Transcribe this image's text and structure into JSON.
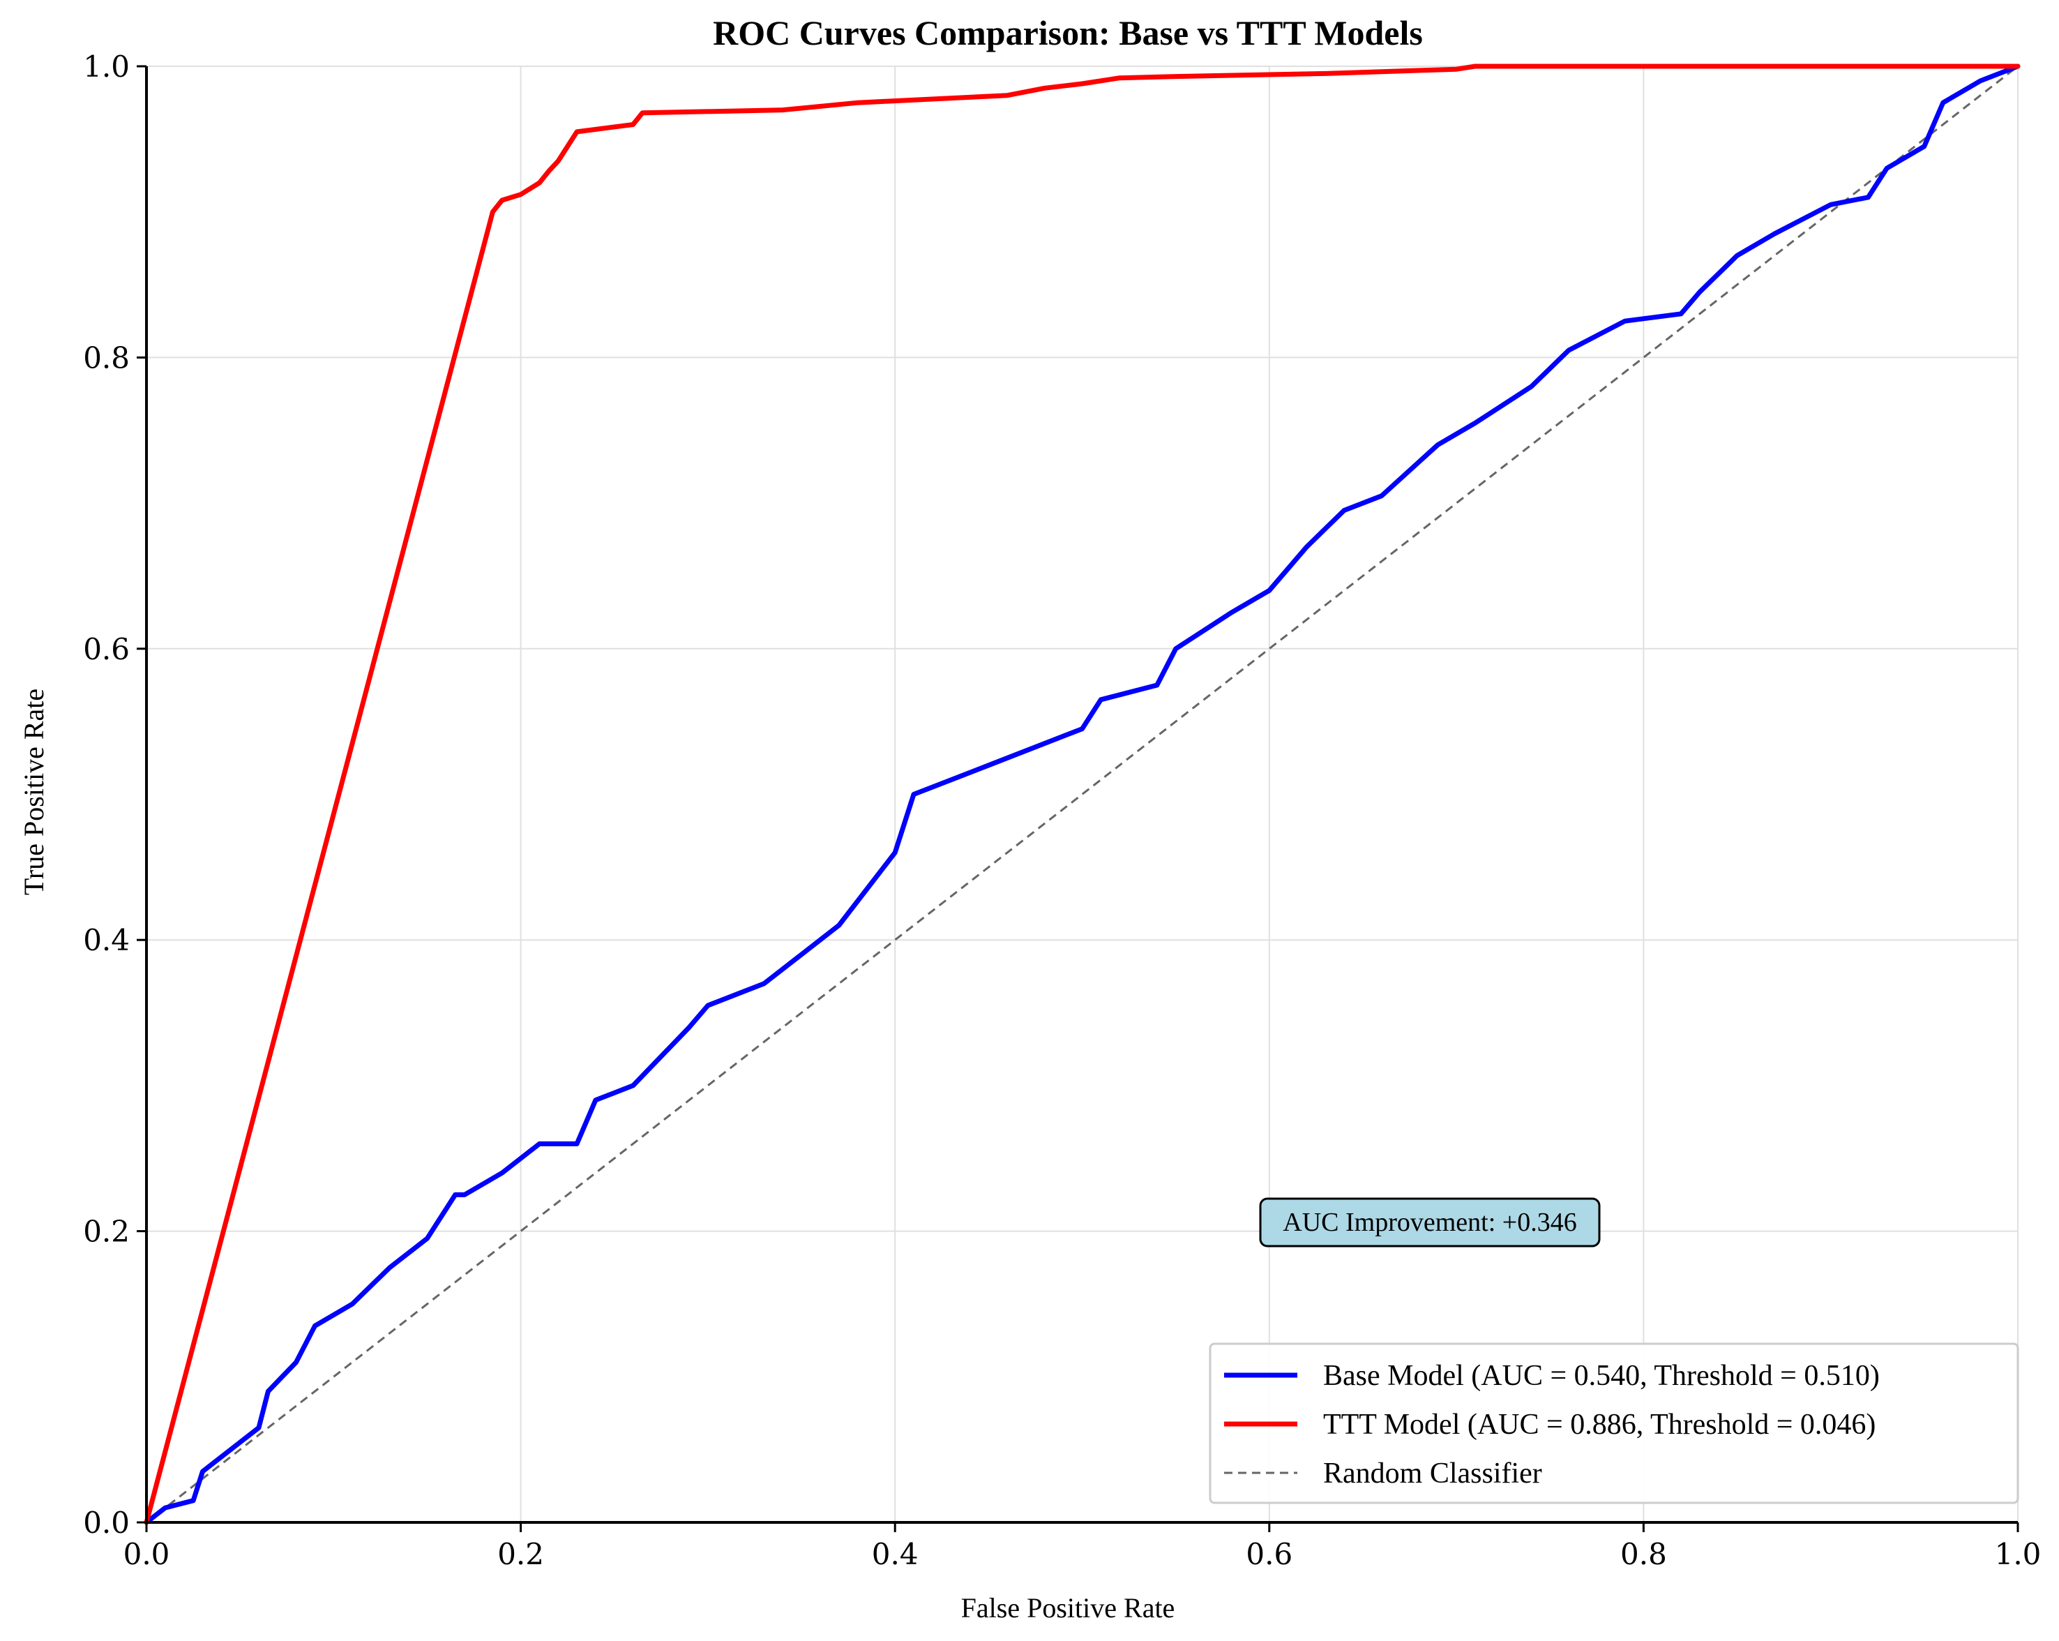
{
  "chart_data": {
    "type": "line",
    "title": "ROC Curves Comparison: Base vs TTT Models",
    "xlabel": "False Positive Rate",
    "ylabel": "True Positive Rate",
    "xlim": [
      0,
      1
    ],
    "ylim": [
      0,
      1
    ],
    "grid": true,
    "legend_position": "bottom-right",
    "x_ticks": [
      "0.0",
      "0.2",
      "0.4",
      "0.6",
      "0.8",
      "1.0"
    ],
    "y_ticks": [
      "0.0",
      "0.2",
      "0.4",
      "0.6",
      "0.8",
      "1.0"
    ],
    "annotation": "AUC Improvement: +0.346",
    "series": [
      {
        "name": "Base Model (AUC = 0.540, Threshold = 0.510)",
        "color": "#0000ff",
        "style": "solid",
        "x": [
          0.0,
          0.01,
          0.025,
          0.03,
          0.04,
          0.05,
          0.06,
          0.065,
          0.08,
          0.09,
          0.11,
          0.13,
          0.15,
          0.165,
          0.17,
          0.19,
          0.21,
          0.23,
          0.24,
          0.26,
          0.29,
          0.3,
          0.33,
          0.37,
          0.4,
          0.41,
          0.45,
          0.5,
          0.51,
          0.54,
          0.55,
          0.58,
          0.6,
          0.62,
          0.64,
          0.66,
          0.69,
          0.71,
          0.74,
          0.76,
          0.79,
          0.82,
          0.83,
          0.85,
          0.87,
          0.9,
          0.92,
          0.93,
          0.95,
          0.96,
          0.98,
          1.0
        ],
        "y": [
          0.0,
          0.01,
          0.015,
          0.035,
          0.045,
          0.055,
          0.065,
          0.09,
          0.11,
          0.135,
          0.15,
          0.175,
          0.195,
          0.225,
          0.225,
          0.24,
          0.26,
          0.26,
          0.29,
          0.3,
          0.34,
          0.355,
          0.37,
          0.41,
          0.46,
          0.5,
          0.52,
          0.545,
          0.565,
          0.575,
          0.6,
          0.625,
          0.64,
          0.67,
          0.695,
          0.705,
          0.74,
          0.755,
          0.78,
          0.805,
          0.825,
          0.83,
          0.845,
          0.87,
          0.885,
          0.905,
          0.91,
          0.93,
          0.945,
          0.975,
          0.99,
          1.0
        ]
      },
      {
        "name": "TTT Model (AUC = 0.886, Threshold = 0.046)",
        "color": "#ff0000",
        "style": "solid",
        "x": [
          0.0,
          0.185,
          0.19,
          0.2,
          0.21,
          0.215,
          0.22,
          0.225,
          0.23,
          0.26,
          0.265,
          0.34,
          0.38,
          0.46,
          0.48,
          0.5,
          0.52,
          0.55,
          0.63,
          0.7,
          0.71,
          1.0
        ],
        "y": [
          0.0,
          0.9,
          0.908,
          0.912,
          0.92,
          0.928,
          0.935,
          0.945,
          0.955,
          0.96,
          0.968,
          0.97,
          0.975,
          0.98,
          0.985,
          0.988,
          0.992,
          0.993,
          0.995,
          0.998,
          1.0,
          1.0
        ]
      },
      {
        "name": "Random Classifier",
        "color": "#666666",
        "style": "dashed",
        "x": [
          0,
          1
        ],
        "y": [
          0,
          1
        ]
      }
    ]
  }
}
